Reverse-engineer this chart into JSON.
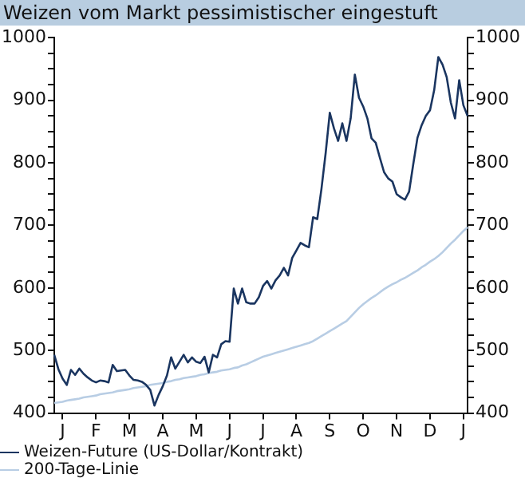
{
  "chart_data": {
    "type": "line",
    "title": "Weizen vom Markt pessimistischer eingestuft",
    "categories": [
      null,
      null,
      "J",
      null,
      null,
      null,
      null,
      null,
      null,
      null,
      "F",
      null,
      null,
      null,
      null,
      null,
      null,
      null,
      "M",
      null,
      null,
      null,
      null,
      null,
      null,
      null,
      "A",
      null,
      null,
      null,
      null,
      null,
      null,
      null,
      "M",
      null,
      null,
      null,
      null,
      null,
      null,
      null,
      "J",
      null,
      null,
      null,
      null,
      null,
      null,
      null,
      "J",
      null,
      null,
      null,
      null,
      null,
      null,
      null,
      "A",
      null,
      null,
      null,
      null,
      null,
      null,
      null,
      "S",
      null,
      null,
      null,
      null,
      null,
      null,
      null,
      "O",
      null,
      null,
      null,
      null,
      null,
      null,
      null,
      "N",
      null,
      null,
      null,
      null,
      null,
      null,
      null,
      "D",
      null,
      null,
      null,
      null,
      null,
      null,
      null,
      "J",
      null
    ],
    "ylim": [
      400,
      1000
    ],
    "yticks": [
      400,
      {
        "value": 425,
        "label": null
      },
      {
        "value": 450,
        "label": null
      },
      {
        "value": 475,
        "label": null
      },
      500,
      {
        "value": 525,
        "label": null
      },
      {
        "value": 550,
        "label": null
      },
      {
        "value": 575,
        "label": null
      },
      600,
      {
        "value": 625,
        "label": null
      },
      {
        "value": 650,
        "label": null
      },
      {
        "value": 675,
        "label": null
      },
      700,
      {
        "value": 725,
        "label": null
      },
      {
        "value": 750,
        "label": null
      },
      {
        "value": 775,
        "label": null
      },
      800,
      {
        "value": 825,
        "label": null
      },
      {
        "value": 850,
        "label": null
      },
      {
        "value": 875,
        "label": null
      },
      900,
      {
        "value": 925,
        "label": null
      },
      {
        "value": 950,
        "label": null
      },
      {
        "value": 975,
        "label": null
      },
      1000
    ],
    "y2lim": [
      400,
      1000
    ],
    "y2ticks": [
      400,
      {
        "value": 425,
        "label": null
      },
      {
        "value": 450,
        "label": null
      },
      {
        "value": 475,
        "label": null
      },
      500,
      {
        "value": 525,
        "label": null
      },
      {
        "value": 550,
        "label": null
      },
      {
        "value": 575,
        "label": null
      },
      600,
      {
        "value": 625,
        "label": null
      },
      {
        "value": 650,
        "label": null
      },
      {
        "value": 675,
        "label": null
      },
      700,
      {
        "value": 725,
        "label": null
      },
      {
        "value": 750,
        "label": null
      },
      {
        "value": 775,
        "label": null
      },
      800,
      {
        "value": 825,
        "label": null
      },
      {
        "value": 850,
        "label": null
      },
      {
        "value": 875,
        "label": null
      },
      900,
      {
        "value": 925,
        "label": null
      },
      {
        "value": 950,
        "label": null
      },
      {
        "value": 975,
        "label": null
      },
      1000
    ],
    "grid": false,
    "legend": "bottom left",
    "marker": "none",
    "line_style": "solid",
    "series": [
      {
        "name": "Weizen-Future (US-Dollar/Kontrakt)",
        "color": "#1a3560",
        "values": [
          493,
          470,
          455,
          445,
          469,
          461,
          471,
          463,
          457,
          452,
          449,
          452,
          451,
          449,
          477,
          467,
          468,
          469,
          460,
          453,
          452,
          450,
          445,
          437,
          412,
          429,
          443,
          460,
          489,
          471,
          482,
          493,
          481,
          489,
          482,
          480,
          490,
          465,
          493,
          489,
          510,
          515,
          514,
          599,
          575,
          599,
          577,
          575,
          575,
          585,
          603,
          611,
          599,
          612,
          620,
          632,
          620,
          648,
          660,
          672,
          668,
          665,
          713,
          710,
          758,
          815,
          880,
          855,
          835,
          863,
          835,
          871,
          941,
          904,
          890,
          871,
          839,
          832,
          808,
          785,
          775,
          770,
          750,
          745,
          741,
          754,
          798,
          840,
          860,
          875,
          884,
          916,
          969,
          957,
          937,
          896,
          871,
          932,
          892,
          875
        ]
      },
      {
        "name": "200-Tage-Linie",
        "color": "#b8cde4",
        "values": [
          416,
          417,
          418,
          420,
          421,
          422,
          423,
          425,
          426,
          427,
          428,
          430,
          431,
          432,
          433,
          435,
          436,
          437,
          438,
          440,
          441,
          442,
          443,
          445,
          446,
          447,
          448,
          450,
          451,
          453,
          454,
          456,
          457,
          458,
          459,
          461,
          462,
          464,
          465,
          466,
          468,
          469,
          470,
          472,
          473,
          476,
          478,
          481,
          484,
          487,
          490,
          492,
          494,
          496,
          498,
          500,
          502,
          504,
          506,
          508,
          510,
          512,
          515,
          519,
          523,
          527,
          531,
          535,
          539,
          543,
          547,
          554,
          561,
          568,
          574,
          579,
          584,
          588,
          593,
          598,
          602,
          606,
          609,
          613,
          616,
          620,
          624,
          628,
          633,
          637,
          642,
          646,
          651,
          657,
          664,
          671,
          677,
          684,
          691,
          697
        ]
      }
    ]
  }
}
